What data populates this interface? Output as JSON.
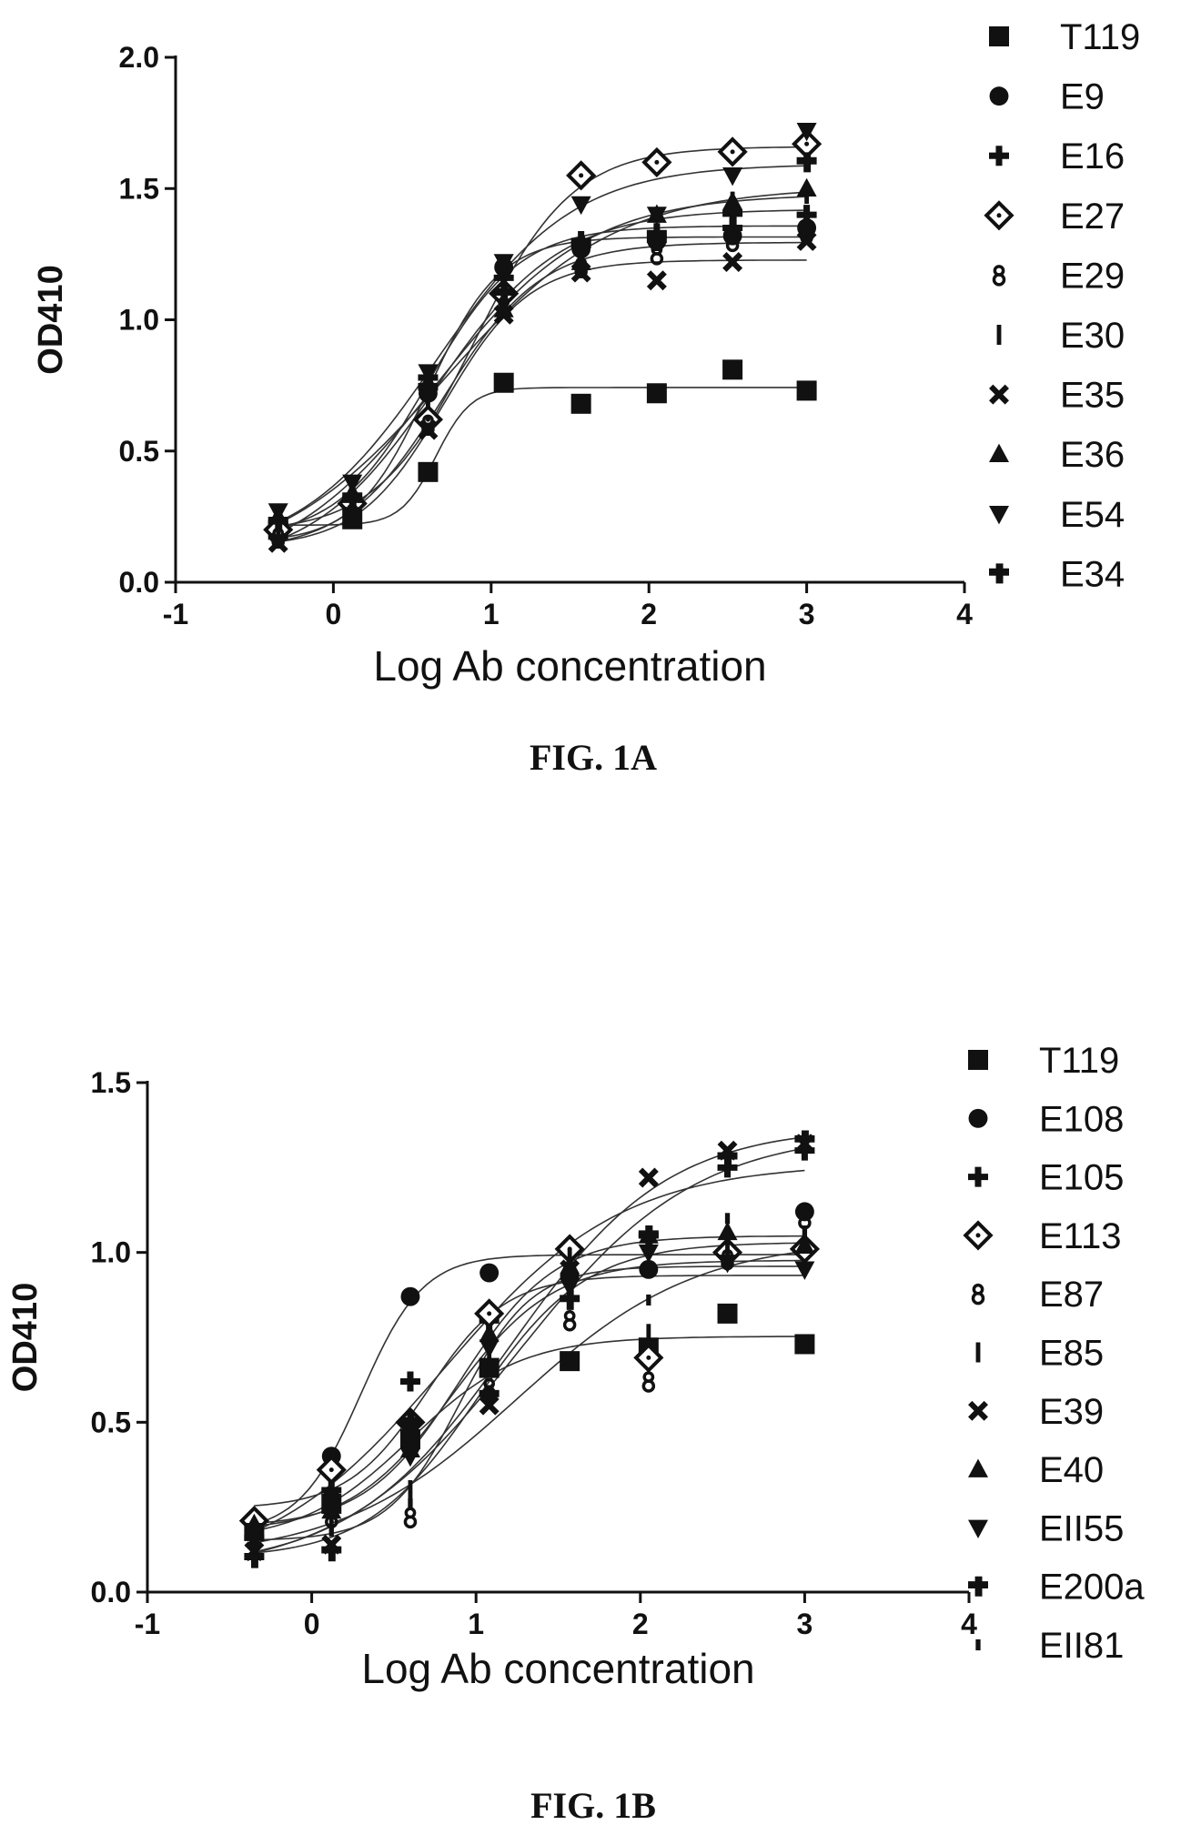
{
  "chart_data": [
    {
      "type": "scatter",
      "caption": "FIG. 1A",
      "title": "",
      "xlabel": "Log Ab concentration",
      "ylabel": "OD410",
      "xlim": [
        -1,
        4
      ],
      "ylim": [
        0,
        2
      ],
      "x_ticks": [
        "-1",
        "0",
        "1",
        "2",
        "3",
        "4"
      ],
      "y_ticks": [
        "0.0",
        "0.5",
        "1.0",
        "1.5",
        "2.0"
      ],
      "grid": false,
      "legend_position": "right",
      "fitted_curves": true,
      "x": [
        -0.35,
        0.12,
        0.6,
        1.08,
        1.57,
        2.05,
        2.53,
        3.0
      ],
      "series": [
        {
          "name": "T119",
          "marker": "square",
          "values": [
            0.2,
            0.24,
            0.42,
            0.76,
            0.68,
            0.72,
            0.81,
            0.73
          ]
        },
        {
          "name": "E9",
          "marker": "circle",
          "values": [
            0.18,
            0.27,
            0.72,
            1.2,
            1.27,
            1.3,
            1.32,
            1.35
          ]
        },
        {
          "name": "E16",
          "marker": "plus",
          "values": [
            0.22,
            0.33,
            0.78,
            1.16,
            1.3,
            1.33,
            1.35,
            1.4
          ]
        },
        {
          "name": "E27",
          "marker": "diamond",
          "values": [
            0.2,
            0.3,
            0.62,
            1.1,
            1.55,
            1.6,
            1.64,
            1.67
          ]
        },
        {
          "name": "E29",
          "marker": "ampersand",
          "values": [
            0.17,
            0.26,
            0.6,
            1.05,
            1.2,
            1.25,
            1.3,
            1.33
          ]
        },
        {
          "name": "E30",
          "marker": "bar",
          "values": [
            0.2,
            0.29,
            0.7,
            1.12,
            1.25,
            1.3,
            1.45,
            1.48
          ]
        },
        {
          "name": "E35",
          "marker": "x",
          "values": [
            0.15,
            0.25,
            0.58,
            1.02,
            1.18,
            1.15,
            1.22,
            1.3
          ]
        },
        {
          "name": "E36",
          "marker": "triangle-up",
          "values": [
            0.25,
            0.34,
            0.76,
            1.04,
            1.22,
            1.4,
            1.45,
            1.5
          ]
        },
        {
          "name": "E54",
          "marker": "triangle-down",
          "values": [
            0.27,
            0.38,
            0.8,
            1.22,
            1.44,
            1.4,
            1.55,
            1.72
          ]
        },
        {
          "name": "E34",
          "marker": "cross",
          "values": [
            0.23,
            0.31,
            0.74,
            1.1,
            1.28,
            1.3,
            1.4,
            1.6
          ]
        }
      ]
    },
    {
      "type": "scatter",
      "caption": "FIG. 1B",
      "title": "",
      "xlabel": "Log Ab concentration",
      "ylabel": "OD410",
      "xlim": [
        -1,
        4
      ],
      "ylim": [
        0,
        1.5
      ],
      "x_ticks": [
        "-1",
        "0",
        "1",
        "2",
        "3",
        "4"
      ],
      "y_ticks": [
        "0.0",
        "0.5",
        "1.0",
        "1.5"
      ],
      "grid": false,
      "legend_position": "right",
      "fitted_curves": true,
      "x": [
        -0.35,
        0.12,
        0.6,
        1.08,
        1.57,
        2.05,
        2.53,
        3.0
      ],
      "series": [
        {
          "name": "T119",
          "marker": "square",
          "values": [
            0.18,
            0.26,
            0.45,
            0.66,
            0.68,
            0.72,
            0.82,
            0.73
          ]
        },
        {
          "name": "E108",
          "marker": "circle",
          "values": [
            0.2,
            0.4,
            0.87,
            0.94,
            0.93,
            0.95,
            1.0,
            1.12
          ]
        },
        {
          "name": "E105",
          "marker": "plus",
          "values": [
            0.16,
            0.3,
            0.62,
            0.8,
            1.0,
            1.05,
            1.25,
            1.3
          ]
        },
        {
          "name": "E113",
          "marker": "diamond",
          "values": [
            0.21,
            0.36,
            0.5,
            0.82,
            1.01,
            0.69,
            1.0,
            1.01
          ]
        },
        {
          "name": "E87",
          "marker": "ampersand",
          "values": [
            0.15,
            0.22,
            0.22,
            0.6,
            0.8,
            0.62,
            0.98,
            1.1
          ]
        },
        {
          "name": "E85",
          "marker": "bar",
          "values": [
            0.14,
            0.2,
            0.3,
            0.7,
            0.98,
            0.76,
            1.02,
            1.05
          ]
        },
        {
          "name": "E39",
          "marker": "x",
          "values": [
            0.12,
            0.14,
            0.48,
            0.55,
            0.95,
            1.22,
            1.3,
            1.32
          ]
        },
        {
          "name": "E40",
          "marker": "triangle-up",
          "values": [
            0.2,
            0.24,
            0.42,
            0.76,
            0.96,
            1.05,
            1.06,
            1.02
          ]
        },
        {
          "name": "EII55",
          "marker": "triangle-down",
          "values": [
            0.18,
            0.28,
            0.4,
            0.72,
            0.9,
            1.0,
            0.97,
            0.95
          ]
        },
        {
          "name": "E200a",
          "marker": "cross",
          "values": [
            0.1,
            0.12,
            0.5,
            0.58,
            0.86,
            1.05,
            1.28,
            1.33
          ]
        },
        {
          "name": "EII81",
          "marker": "dot",
          "values": [
            0.13,
            0.18,
            0.26,
            0.65,
            0.9,
            0.86,
            1.1,
            1.06
          ]
        }
      ]
    }
  ]
}
